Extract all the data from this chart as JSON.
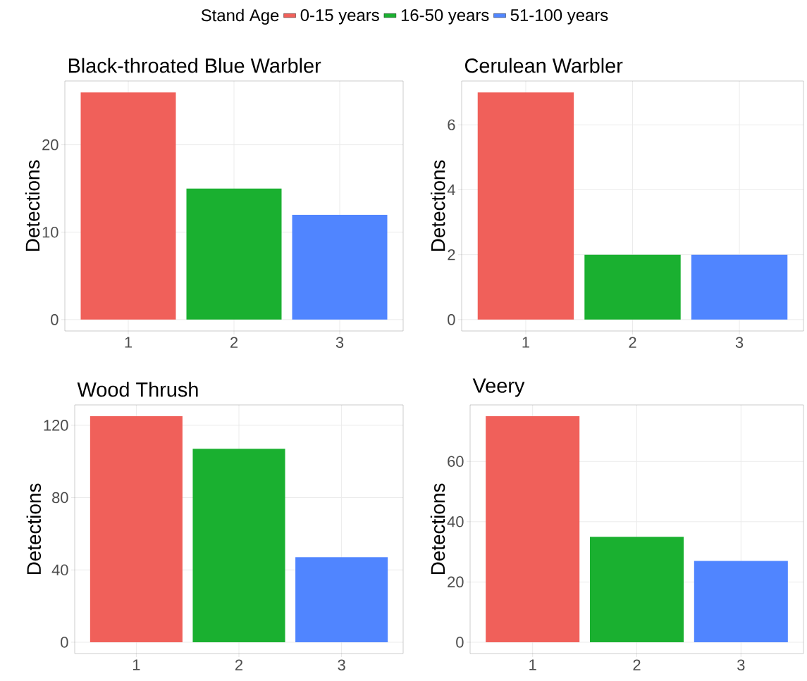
{
  "chart_data": [
    {
      "type": "bar",
      "title": "Black-throated Blue Warbler",
      "ylabel": "Detections",
      "legend_title": "Stand Age",
      "legend": "top",
      "grid": true,
      "categories": [
        "1",
        "2",
        "3"
      ],
      "ylim": [
        -1.3,
        27.3
      ],
      "yticks": [
        0,
        10,
        20
      ],
      "series": [
        {
          "name": "0-15 years",
          "color": "#f0605a",
          "values": [
            26,
            null,
            null
          ]
        },
        {
          "name": "16-50 years",
          "color": "#1ab030",
          "values": [
            null,
            15,
            null
          ]
        },
        {
          "name": "51-100 years",
          "color": "#5085ff",
          "values": [
            null,
            null,
            12
          ]
        }
      ]
    },
    {
      "type": "bar",
      "title": "Cerulean Warbler",
      "ylabel": "Detections",
      "grid": true,
      "categories": [
        "1",
        "2",
        "3"
      ],
      "ylim": [
        -0.35,
        7.35
      ],
      "yticks": [
        0,
        2,
        4,
        6
      ],
      "series": [
        {
          "color": "#f0605a",
          "values": [
            7,
            null,
            null
          ]
        },
        {
          "color": "#1ab030",
          "values": [
            null,
            2,
            null
          ]
        },
        {
          "color": "#5085ff",
          "values": [
            null,
            null,
            2
          ]
        }
      ]
    },
    {
      "type": "bar",
      "title": "Wood Thrush",
      "ylabel": "Detections",
      "grid": true,
      "categories": [
        "1",
        "2",
        "3"
      ],
      "ylim": [
        -6.25,
        131.25
      ],
      "yticks": [
        0,
        40,
        80,
        120
      ],
      "series": [
        {
          "color": "#f0605a",
          "values": [
            125,
            null,
            null
          ]
        },
        {
          "color": "#1ab030",
          "values": [
            null,
            107,
            null
          ]
        },
        {
          "color": "#5085ff",
          "values": [
            null,
            null,
            47
          ]
        }
      ]
    },
    {
      "type": "bar",
      "title": "Veery",
      "ylabel": "Detections",
      "grid": true,
      "categories": [
        "1",
        "2",
        "3"
      ],
      "ylim": [
        -3.75,
        78.75
      ],
      "yticks": [
        0,
        20,
        40,
        60
      ],
      "series": [
        {
          "color": "#f0605a",
          "values": [
            75,
            null,
            null
          ]
        },
        {
          "color": "#1ab030",
          "values": [
            null,
            35,
            null
          ]
        },
        {
          "color": "#5085ff",
          "values": [
            null,
            null,
            27
          ]
        }
      ]
    }
  ]
}
